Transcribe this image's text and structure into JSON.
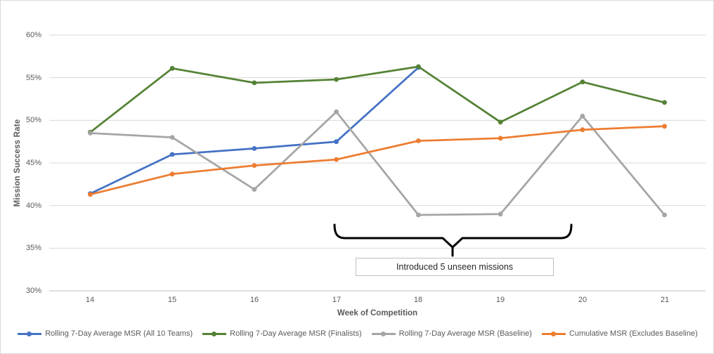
{
  "chart_data": {
    "type": "line",
    "title": "",
    "xlabel": "Week of Competition",
    "ylabel": "Mission Success Rate",
    "categories": [
      "14",
      "15",
      "16",
      "17",
      "18",
      "19",
      "20",
      "21"
    ],
    "ylim": [
      30,
      60
    ],
    "ytick_step": 5,
    "ytick_labels": [
      "60%",
      "55%",
      "50%",
      "45%",
      "40%",
      "35%",
      "30%"
    ],
    "grid": true,
    "legend_position": "bottom",
    "series": [
      {
        "name": "Rolling 7-Day Average MSR (All 10 Teams)",
        "color": "#4472C4",
        "values": [
          41.4,
          46.0,
          46.7,
          47.5,
          56.2,
          null,
          null,
          null
        ]
      },
      {
        "name": "Rolling 7-Day Average MSR (Finalists)",
        "color": "#548235",
        "values": [
          48.6,
          56.1,
          54.4,
          54.8,
          56.3,
          49.8,
          54.5,
          52.1
        ]
      },
      {
        "name": "Rolling 7-Day Average MSR (Baseline)",
        "color": "#A5A5A5",
        "values": [
          48.5,
          48.0,
          41.9,
          51.0,
          38.9,
          39.0,
          50.5,
          38.9
        ]
      },
      {
        "name": "Cumulative MSR (Excludes Baseline)",
        "color": "#ED7D31",
        "values": [
          41.3,
          43.7,
          44.7,
          45.4,
          47.6,
          47.9,
          48.9,
          49.3
        ]
      }
    ],
    "annotation": {
      "text": "Introduced 5 unseen missions",
      "brace_span_weeks": [
        17,
        20
      ]
    }
  }
}
